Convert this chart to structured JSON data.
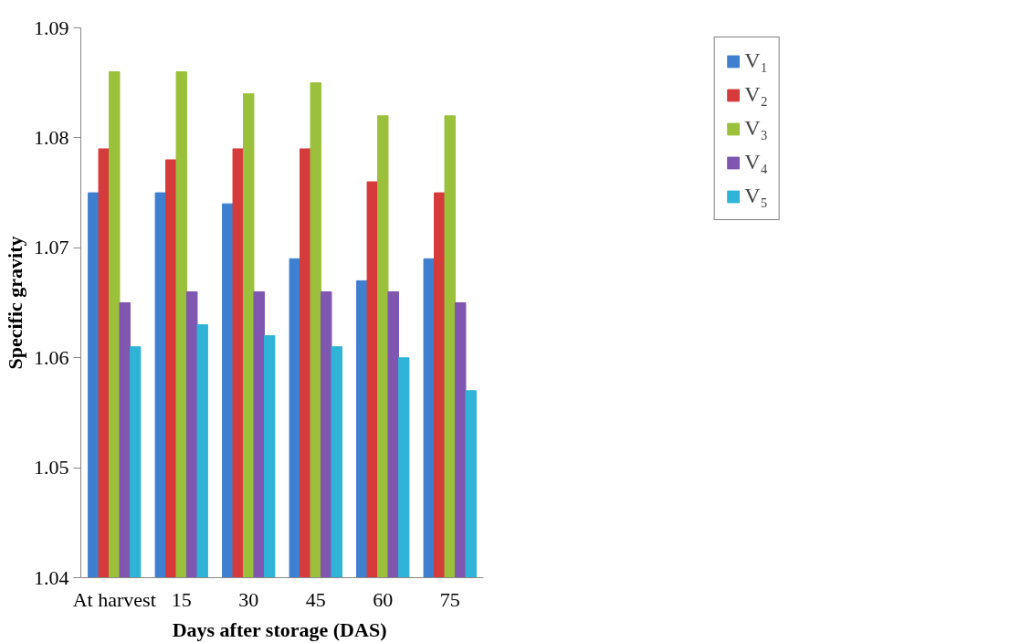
{
  "chart_data": {
    "type": "bar",
    "xlabel": "Days after  storage (DAS)",
    "ylabel": "Specific gravity",
    "categories": [
      "At harvest",
      "15",
      "30",
      "45",
      "60",
      "75"
    ],
    "series": [
      {
        "name": "V₁",
        "color": "#3f7fcf",
        "values": [
          1.075,
          1.075,
          1.074,
          1.069,
          1.067,
          1.069
        ]
      },
      {
        "name": "V₂",
        "color": "#d63b3b",
        "values": [
          1.079,
          1.078,
          1.079,
          1.079,
          1.076,
          1.075
        ]
      },
      {
        "name": "V₃",
        "color": "#9bc13c",
        "values": [
          1.086,
          1.086,
          1.084,
          1.085,
          1.082,
          1.082
        ]
      },
      {
        "name": "V₄",
        "color": "#7f56b0",
        "values": [
          1.065,
          1.066,
          1.066,
          1.066,
          1.066,
          1.065
        ]
      },
      {
        "name": "V₅",
        "color": "#2fb3d6",
        "values": [
          1.061,
          1.063,
          1.062,
          1.061,
          1.06,
          1.057
        ]
      }
    ],
    "ylim": [
      1.04,
      1.09
    ],
    "yticks": [
      1.04,
      1.05,
      1.06,
      1.07,
      1.08,
      1.09
    ],
    "grid": false,
    "legend": "top right"
  }
}
